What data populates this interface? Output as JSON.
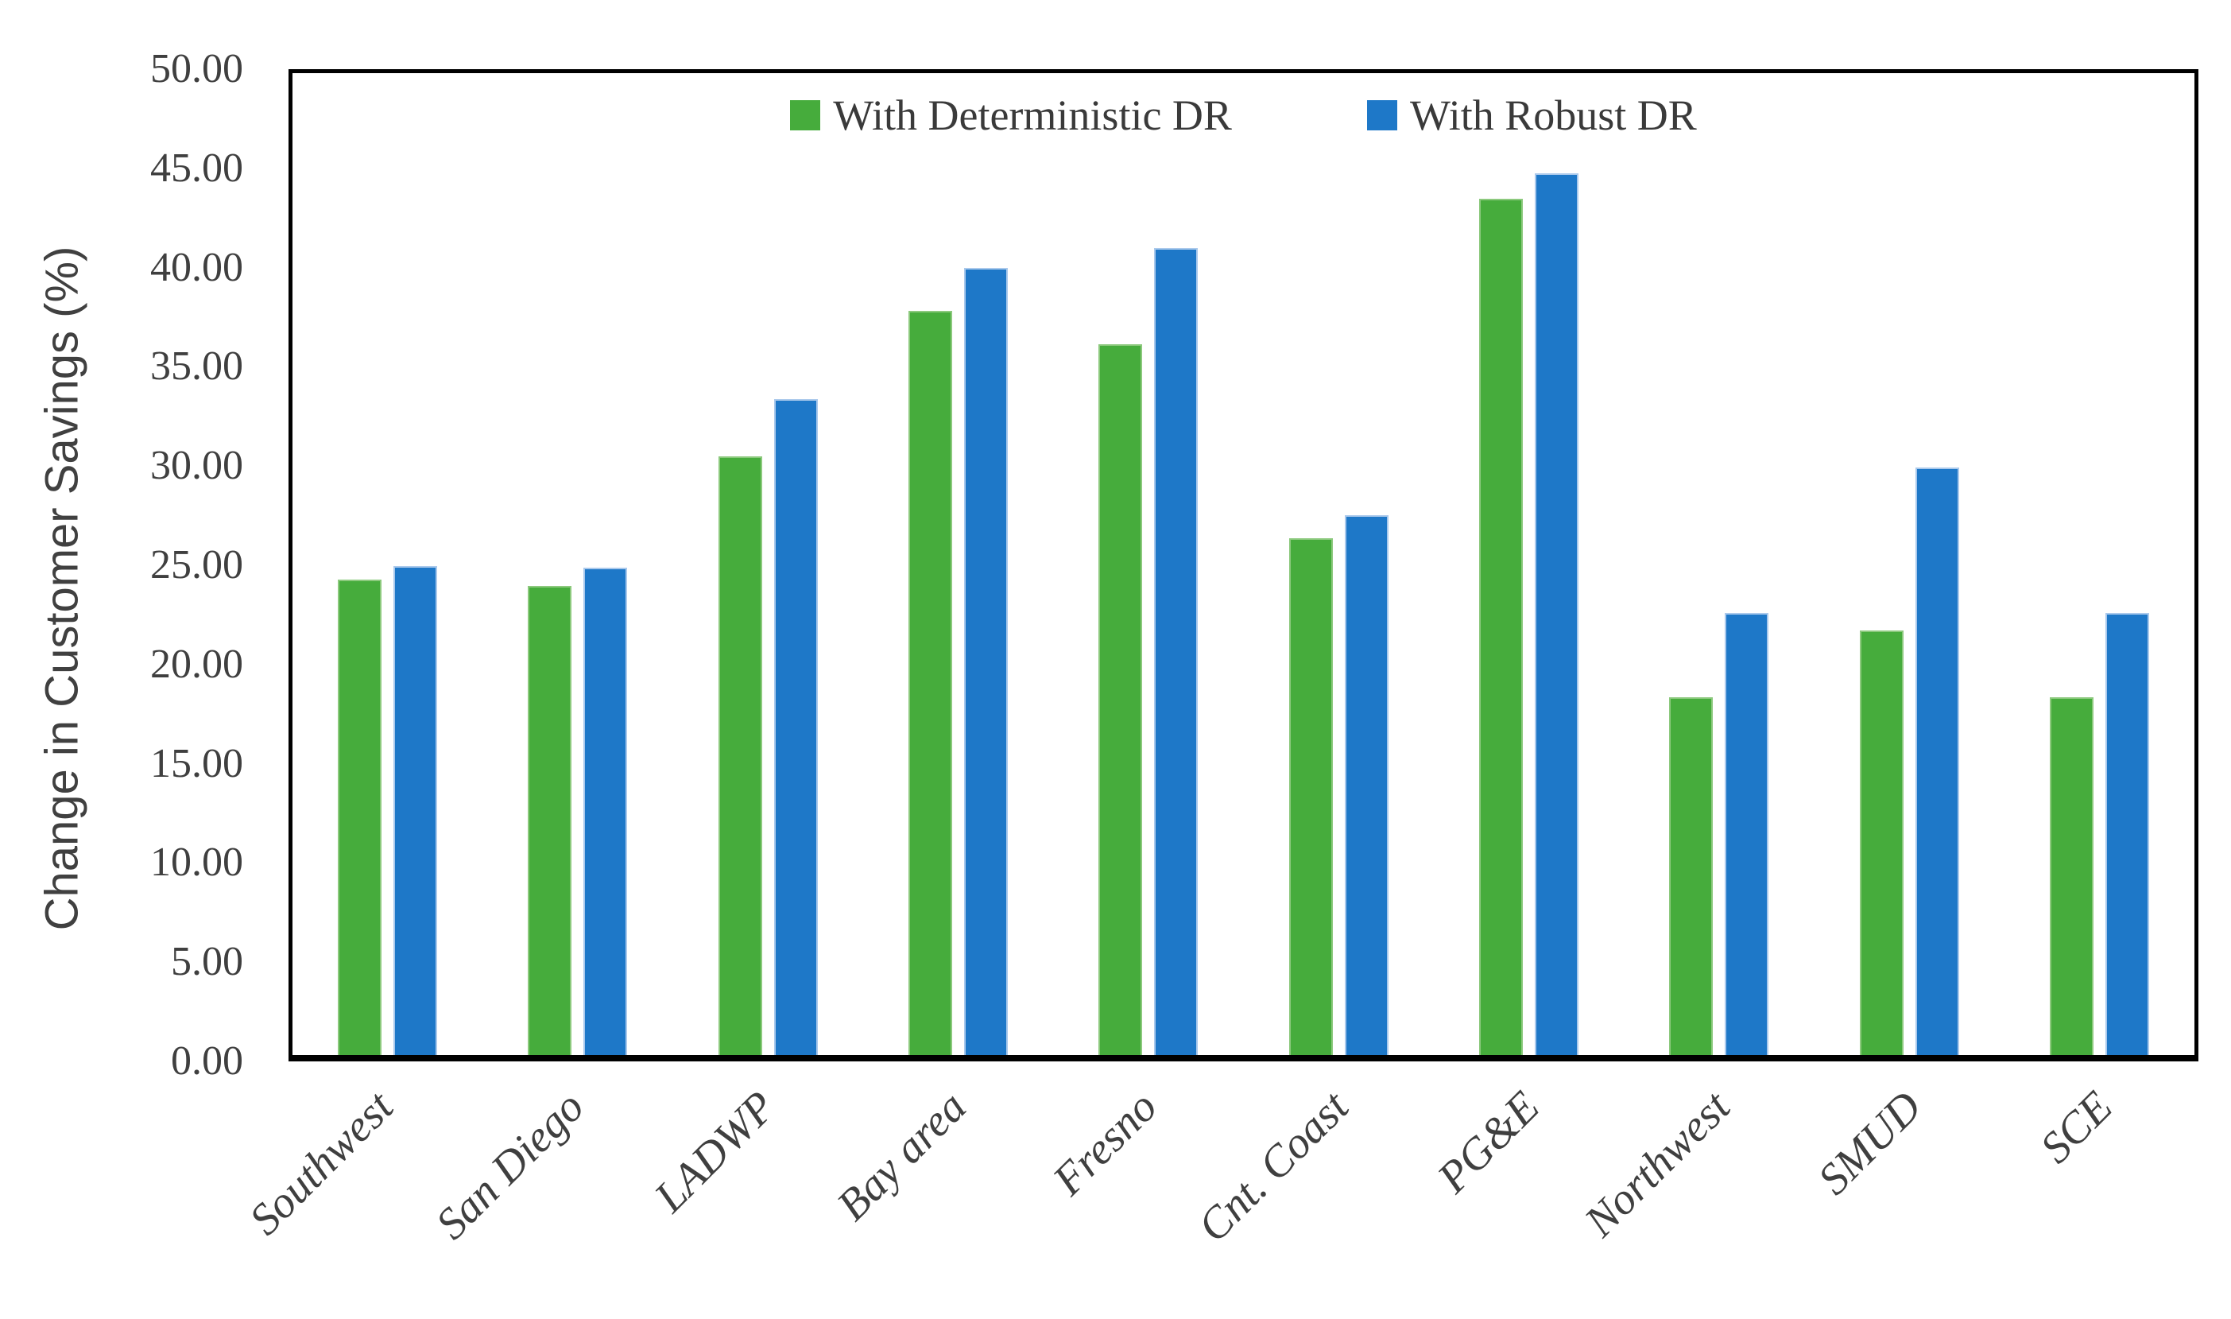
{
  "chart_data": {
    "type": "bar",
    "title": "",
    "ylabel": "Change in Customer Savings (%)",
    "xlabel": "",
    "ylim": [
      0,
      50
    ],
    "ytick_step": 5,
    "ytick_labels": [
      "0.00",
      "5.00",
      "10.00",
      "15.00",
      "20.00",
      "25.00",
      "30.00",
      "35.00",
      "40.00",
      "45.00",
      "50.00"
    ],
    "categories": [
      "Southwest",
      "San Diego",
      "LADWP",
      "Bay area",
      "Fresno",
      "Cnt. Coast",
      "PG&E",
      "Northwest",
      "SMUD",
      "SCE"
    ],
    "series": [
      {
        "name": "With Deterministic DR",
        "color": "#46AC3C",
        "edge_color": "#8cc97d",
        "values": [
          24.2,
          23.9,
          30.5,
          37.9,
          36.2,
          26.3,
          43.6,
          18.2,
          21.6,
          18.2
        ]
      },
      {
        "name": "With Robust DR",
        "color": "#1E78C8",
        "edge_color": "#aac9ec",
        "values": [
          24.9,
          24.8,
          33.4,
          40.1,
          41.1,
          27.5,
          44.9,
          22.5,
          29.9,
          22.5
        ]
      }
    ],
    "legend_position": "top-center-inside",
    "grid": false,
    "text_color": "#3f3f3f",
    "axis_color": "#000000"
  }
}
